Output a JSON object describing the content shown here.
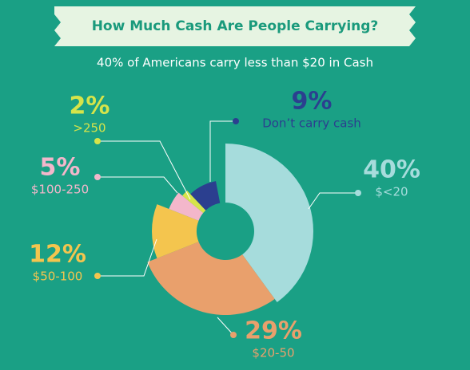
{
  "chart_data": {
    "type": "pie",
    "title": "How Much Cash Are People Carrying?",
    "subtitle": "40% of Americans carry less than $20 in Cash",
    "categories": [
      "$<20",
      "$20-50",
      "$50-100",
      "$100-250",
      ">250",
      "Don’t carry cash"
    ],
    "values": [
      40,
      29,
      12,
      5,
      2,
      9
    ],
    "value_labels": [
      "40%",
      "29%",
      "12%",
      "5%",
      "2%",
      "9%"
    ],
    "colors": [
      "#a6dcdc",
      "#e9a06c",
      "#f4c54e",
      "#f3b7cb",
      "#d6e44a",
      "#2b3f8f"
    ]
  }
}
